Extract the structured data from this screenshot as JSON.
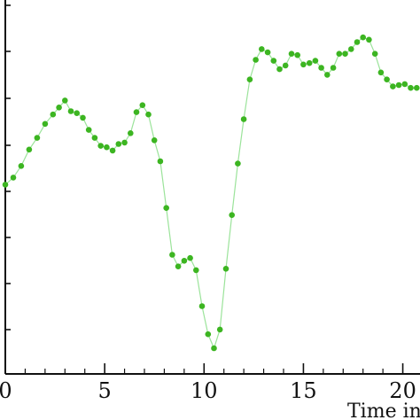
{
  "chart_data": {
    "type": "line",
    "xlabel": "Time in",
    "ylabel": "",
    "xlim": [
      0,
      21
    ],
    "x_ticks": [
      0,
      5,
      10,
      15,
      20
    ],
    "x_tick_labels": [
      "0",
      "5",
      "10",
      "15",
      "20"
    ],
    "grid": false,
    "colors": {
      "series": "#3cb521",
      "line": "#9be39a",
      "axis": "#111111"
    },
    "series": [
      {
        "marker": "circle",
        "x": [
          0,
          0.4,
          0.8,
          1.2,
          1.6,
          2.0,
          2.4,
          2.7,
          3.0,
          3.3,
          3.6,
          3.9,
          4.2,
          4.5,
          4.8,
          5.1,
          5.4,
          5.7,
          6.0,
          6.3,
          6.6,
          6.9,
          7.2,
          7.5,
          7.8,
          8.1,
          8.4,
          8.7,
          9.0,
          9.3,
          9.6,
          9.9,
          10.2,
          10.5,
          10.8,
          11.1,
          11.4,
          11.7,
          12.0,
          12.3,
          12.6,
          12.9,
          13.2,
          13.5,
          13.8,
          14.1,
          14.4,
          14.7,
          15.0,
          15.3,
          15.6,
          15.9,
          16.2,
          16.5,
          16.8,
          17.1,
          17.4,
          17.7,
          18.0,
          18.3,
          18.6,
          18.9,
          19.2,
          19.5,
          19.8,
          20.1,
          20.4,
          20.7
        ],
        "y": [
          4.05,
          4.2,
          4.45,
          4.8,
          5.05,
          5.35,
          5.55,
          5.7,
          5.85,
          5.62,
          5.58,
          5.48,
          5.22,
          5.05,
          4.88,
          4.85,
          4.78,
          4.92,
          4.95,
          5.15,
          5.6,
          5.75,
          5.55,
          5.0,
          4.55,
          3.55,
          2.55,
          2.3,
          2.42,
          2.48,
          2.22,
          1.45,
          0.85,
          0.55,
          0.95,
          2.25,
          3.4,
          4.5,
          5.45,
          6.3,
          6.72,
          6.95,
          6.88,
          6.7,
          6.52,
          6.6,
          6.85,
          6.82,
          6.62,
          6.65,
          6.7,
          6.55,
          6.4,
          6.55,
          6.85,
          6.85,
          6.95,
          7.1,
          7.2,
          7.15,
          6.85,
          6.45,
          6.3,
          6.15,
          6.18,
          6.2,
          6.12,
          6.12
        ]
      }
    ]
  }
}
